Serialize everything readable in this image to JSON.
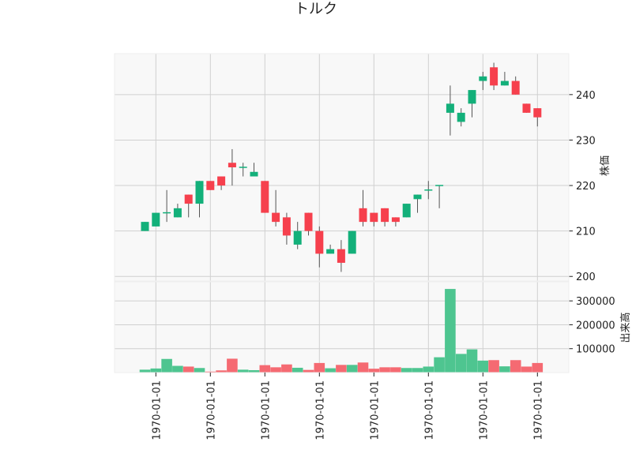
{
  "chart_data": {
    "type": "candlestick",
    "title": "トルク",
    "ylabel_price": "株価",
    "ylabel_volume": "出来高",
    "price_ylim": [
      199,
      249
    ],
    "price_yticks": [
      200,
      210,
      220,
      230,
      240
    ],
    "volume_ylim": [
      0,
      380000
    ],
    "volume_yticks": [
      100000,
      200000,
      300000
    ],
    "volume_tick_labels": [
      "100000",
      "200000",
      "300000"
    ],
    "x_tick_labels": [
      "1970-01-01",
      "1970-01-01",
      "1970-01-01",
      "1970-01-01",
      "1970-01-01",
      "1970-01-01",
      "1970-01-01",
      "1970-01-01"
    ],
    "x_tick_positions": [
      1,
      6,
      11,
      16,
      21,
      26,
      31,
      36
    ],
    "grid": true,
    "colors": {
      "up": "#13b07a",
      "down": "#f6404d",
      "up_volume": "#4ec590",
      "down_volume": "#f56a72",
      "background": "#f8f8f8",
      "grid": "#d0d0d0"
    },
    "candles": [
      {
        "o": 210,
        "h": 212,
        "l": 210,
        "c": 212,
        "v": 12000
      },
      {
        "o": 211,
        "h": 214,
        "l": 211,
        "c": 214,
        "v": 17000
      },
      {
        "o": 214,
        "h": 219,
        "l": 212,
        "c": 214,
        "v": 57000
      },
      {
        "o": 213,
        "h": 216,
        "l": 213,
        "c": 215,
        "v": 28000
      },
      {
        "o": 218,
        "h": 218,
        "l": 213,
        "c": 216,
        "v": 25000
      },
      {
        "o": 216,
        "h": 221,
        "l": 213,
        "c": 221,
        "v": 19000
      },
      {
        "o": 221,
        "h": 221,
        "l": 219,
        "c": 219,
        "v": 4000
      },
      {
        "o": 222,
        "h": 222,
        "l": 219,
        "c": 220,
        "v": 9000
      },
      {
        "o": 225,
        "h": 228,
        "l": 220,
        "c": 224,
        "v": 58000
      },
      {
        "o": 224,
        "h": 225,
        "l": 222,
        "c": 224,
        "v": 12000
      },
      {
        "o": 222,
        "h": 225,
        "l": 222,
        "c": 223,
        "v": 10000
      },
      {
        "o": 221,
        "h": 221,
        "l": 214,
        "c": 214,
        "v": 31000
      },
      {
        "o": 214,
        "h": 219,
        "l": 211,
        "c": 212,
        "v": 22000
      },
      {
        "o": 213,
        "h": 214,
        "l": 207,
        "c": 209,
        "v": 34000
      },
      {
        "o": 207,
        "h": 212,
        "l": 206,
        "c": 210,
        "v": 20000
      },
      {
        "o": 214,
        "h": 214,
        "l": 209,
        "c": 210,
        "v": 11000
      },
      {
        "o": 210,
        "h": 211,
        "l": 202,
        "c": 205,
        "v": 40000
      },
      {
        "o": 205,
        "h": 207,
        "l": 205,
        "c": 206,
        "v": 18000
      },
      {
        "o": 206,
        "h": 208,
        "l": 201,
        "c": 203,
        "v": 32000
      },
      {
        "o": 205,
        "h": 210,
        "l": 205,
        "c": 210,
        "v": 32000
      },
      {
        "o": 215,
        "h": 219,
        "l": 211,
        "c": 212,
        "v": 42000
      },
      {
        "o": 214,
        "h": 214,
        "l": 211,
        "c": 212,
        "v": 16000
      },
      {
        "o": 215,
        "h": 215,
        "l": 211,
        "c": 212,
        "v": 22000
      },
      {
        "o": 213,
        "h": 213,
        "l": 211,
        "c": 212,
        "v": 22000
      },
      {
        "o": 213,
        "h": 216,
        "l": 213,
        "c": 216,
        "v": 19000
      },
      {
        "o": 217,
        "h": 218,
        "l": 214,
        "c": 218,
        "v": 19000
      },
      {
        "o": 219,
        "h": 221,
        "l": 217,
        "c": 219,
        "v": 25000
      },
      {
        "o": 220,
        "h": 220,
        "l": 215,
        "c": 220,
        "v": 64000
      },
      {
        "o": 236,
        "h": 242,
        "l": 231,
        "c": 238,
        "v": 350000
      },
      {
        "o": 234,
        "h": 237,
        "l": 233,
        "c": 236,
        "v": 78000
      },
      {
        "o": 238,
        "h": 241,
        "l": 235,
        "c": 241,
        "v": 97000
      },
      {
        "o": 243,
        "h": 245,
        "l": 241,
        "c": 244,
        "v": 50000
      },
      {
        "o": 246,
        "h": 247,
        "l": 241,
        "c": 242,
        "v": 52000
      },
      {
        "o": 242,
        "h": 245,
        "l": 242,
        "c": 243,
        "v": 26000
      },
      {
        "o": 243,
        "h": 244,
        "l": 240,
        "c": 240,
        "v": 52000
      },
      {
        "o": 238,
        "h": 238,
        "l": 236,
        "c": 236,
        "v": 25000
      },
      {
        "o": 237,
        "h": 237,
        "l": 233,
        "c": 235,
        "v": 40000
      }
    ]
  }
}
